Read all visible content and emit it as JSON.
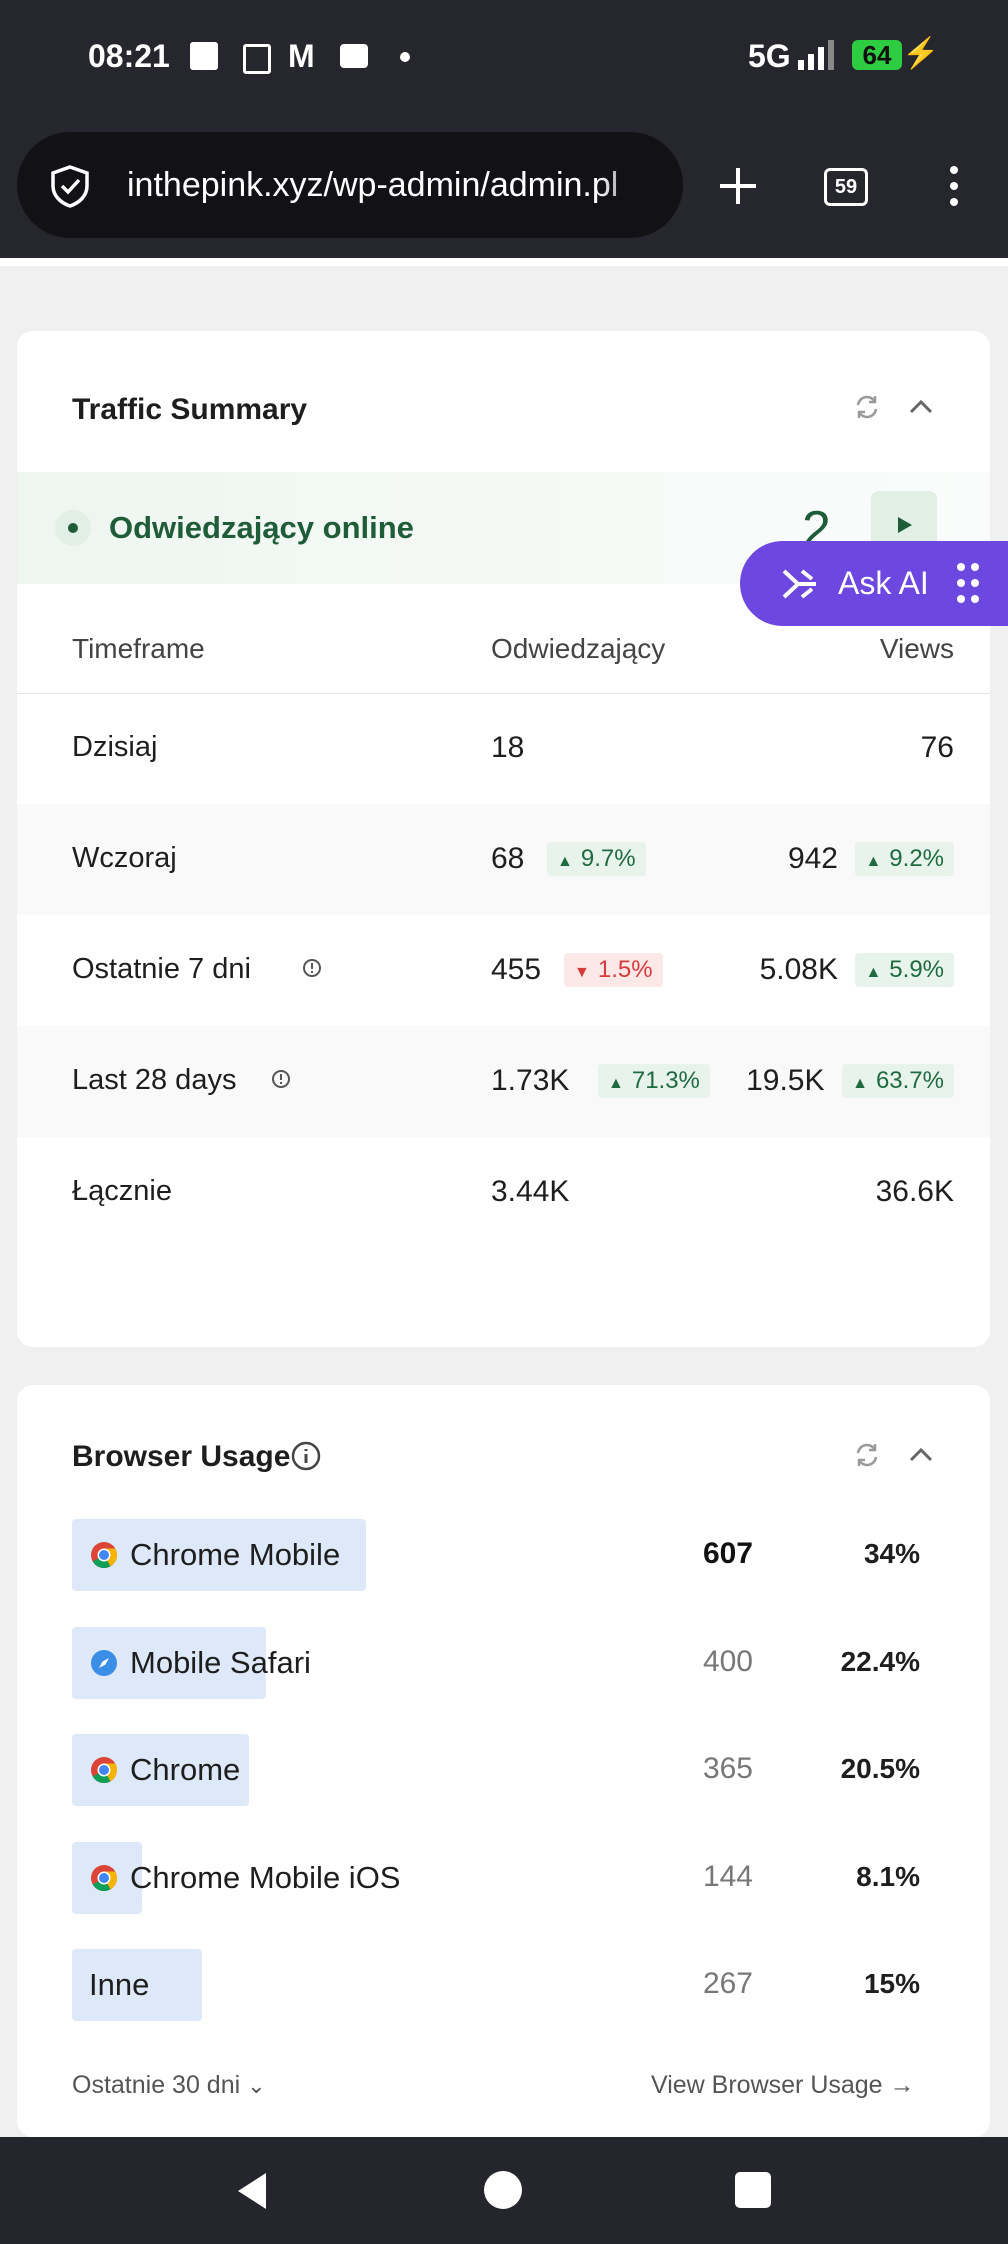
{
  "status_bar": {
    "time": "08:21",
    "network": "5G",
    "battery": "64"
  },
  "browser": {
    "url": "inthepink.xyz/wp-admin/admin.pl",
    "tabs": "59"
  },
  "ask_ai": "Ask AI",
  "traffic_summary": {
    "title": "Traffic Summary",
    "online_label": "Odwiedzający online",
    "online_count": "2",
    "columns": [
      "Timeframe",
      "Odwiedzający",
      "Views"
    ],
    "rows": [
      {
        "label": "Dzisiaj",
        "visitors": "18",
        "views": "76"
      },
      {
        "label": "Wczoraj",
        "visitors": "68",
        "visitors_change": {
          "text": "9.7%",
          "direction": "up"
        },
        "views": "942",
        "views_change": {
          "text": "9.2%",
          "direction": "up"
        }
      },
      {
        "label": "Ostatnie 7 dni",
        "info": true,
        "visitors": "455",
        "visitors_change": {
          "text": "1.5%",
          "direction": "down"
        },
        "views": "5.08K",
        "views_change": {
          "text": "5.9%",
          "direction": "up"
        }
      },
      {
        "label": "Last 28 days",
        "info": true,
        "visitors": "1.73K",
        "visitors_change": {
          "text": "71.3%",
          "direction": "up"
        },
        "views": "19.5K",
        "views_change": {
          "text": "63.7%",
          "direction": "up"
        }
      },
      {
        "label": "Łącznie",
        "visitors": "3.44K",
        "views": "36.6K"
      }
    ]
  },
  "browser_usage": {
    "title": "Browser Usage",
    "rows": [
      {
        "name": "Chrome Mobile",
        "icon": "chrome",
        "count": 607,
        "share": {
          "value": 34,
          "label": "34%"
        }
      },
      {
        "name": "Mobile Safari",
        "icon": "safari",
        "count": 400,
        "share": {
          "value": 22.4,
          "label": "22.4%"
        }
      },
      {
        "name": "Chrome",
        "icon": "chrome",
        "count": 365,
        "share": {
          "value": 20.5,
          "label": "20.5%"
        }
      },
      {
        "name": "Chrome Mobile iOS",
        "icon": "chrome",
        "count": 144,
        "share": {
          "value": 8.1,
          "label": "8.1%"
        }
      },
      {
        "name": "Inne",
        "icon": "none",
        "count": 267,
        "share": {
          "value": 15,
          "label": "15%"
        }
      }
    ],
    "period": "Ostatnie 30 dni",
    "link": "View Browser Usage"
  }
}
